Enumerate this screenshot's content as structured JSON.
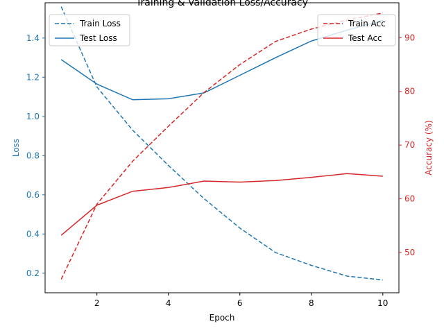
{
  "chart_data": {
    "type": "line",
    "title": "Training & Validation Loss/Accuracy",
    "xlabel": "Epoch",
    "ylabel_left": "Loss",
    "ylabel_right": "Accuracy (%)",
    "x": [
      1,
      2,
      3,
      4,
      5,
      6,
      7,
      8,
      9,
      10
    ],
    "xlim": [
      0.55,
      10.45
    ],
    "xticks": [
      2,
      4,
      6,
      8,
      10
    ],
    "ylim_left": [
      0.1,
      1.58
    ],
    "yticks_left": [
      0.2,
      0.4,
      0.6,
      0.8,
      1.0,
      1.2,
      1.4
    ],
    "ylim_right": [
      42.5,
      96.5
    ],
    "yticks_right": [
      50,
      60,
      70,
      80,
      90
    ],
    "grid": false,
    "colors": {
      "loss": "#1f77b4",
      "acc": "#d62728"
    },
    "series": [
      {
        "name": "Train Loss",
        "axis": "left",
        "style": "dashed",
        "color": "#1f77b4",
        "values": [
          1.56,
          1.15,
          0.93,
          0.75,
          0.58,
          0.43,
          0.305,
          0.24,
          0.185,
          0.165
        ]
      },
      {
        "name": "Test Loss",
        "axis": "left",
        "style": "solid",
        "color": "#1f77b4",
        "values": [
          1.29,
          1.165,
          1.085,
          1.09,
          1.12,
          1.21,
          1.3,
          1.385,
          1.44,
          1.49
        ]
      },
      {
        "name": "Train Acc",
        "axis": "right",
        "style": "dashed",
        "color": "#d62728",
        "values": [
          45.0,
          59.0,
          67.0,
          73.5,
          79.8,
          85.0,
          89.3,
          91.6,
          93.3,
          94.6
        ]
      },
      {
        "name": "Test Acc",
        "axis": "right",
        "style": "solid",
        "color": "#d62728",
        "values": [
          53.2,
          58.8,
          61.4,
          62.1,
          63.3,
          63.1,
          63.4,
          64.0,
          64.7,
          64.2
        ]
      }
    ],
    "legend_left_position": "upper-left",
    "legend_right_position": "upper-right"
  }
}
